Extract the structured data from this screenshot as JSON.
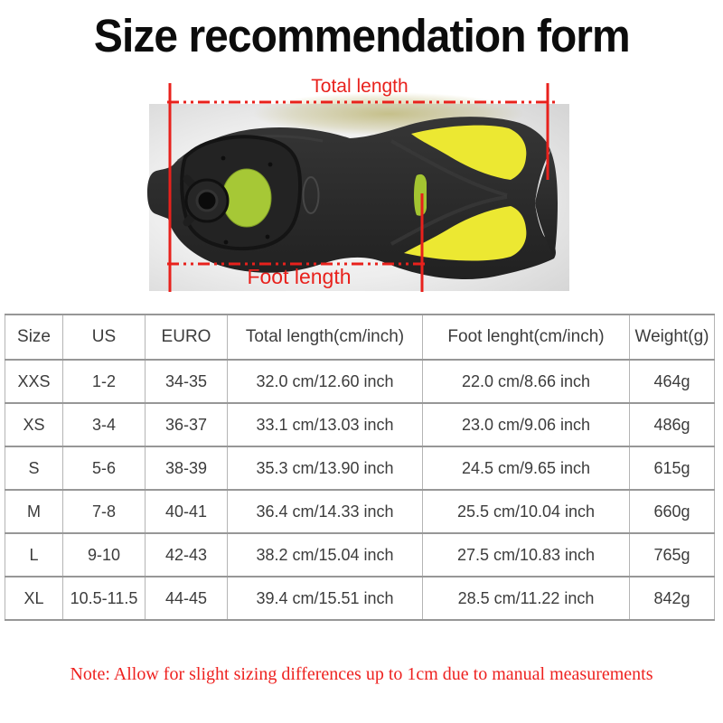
{
  "title": "Size recommendation form",
  "diagram": {
    "total_length_label": "Total length",
    "foot_length_label": "Foot length",
    "colors": {
      "measure_red": "#e8211c",
      "blade_yellow": "#ece832",
      "insole_chartreuse": "#a6c836",
      "fin_black": "#262626"
    }
  },
  "table": {
    "headers": [
      "Size",
      "US",
      "EURO",
      "Total length(cm/inch)",
      "Foot lenght(cm/inch)",
      "Weight(g)"
    ],
    "rows": [
      [
        "XXS",
        "1-2",
        "34-35",
        "32.0 cm/12.60 inch",
        "22.0 cm/8.66 inch",
        "464g"
      ],
      [
        "XS",
        "3-4",
        "36-37",
        "33.1 cm/13.03 inch",
        "23.0 cm/9.06 inch",
        "486g"
      ],
      [
        "S",
        "5-6",
        "38-39",
        "35.3 cm/13.90 inch",
        "24.5 cm/9.65 inch",
        "615g"
      ],
      [
        "M",
        "7-8",
        "40-41",
        "36.4 cm/14.33 inch",
        "25.5 cm/10.04 inch",
        "660g"
      ],
      [
        "L",
        "9-10",
        "42-43",
        "38.2 cm/15.04 inch",
        "27.5 cm/10.83 inch",
        "765g"
      ],
      [
        "XL",
        "10.5-11.5",
        "44-45",
        "39.4 cm/15.51 inch",
        "28.5 cm/11.22 inch",
        "842g"
      ]
    ]
  },
  "note": "Note: Allow for slight sizing differences up to 1cm due to manual measurements"
}
